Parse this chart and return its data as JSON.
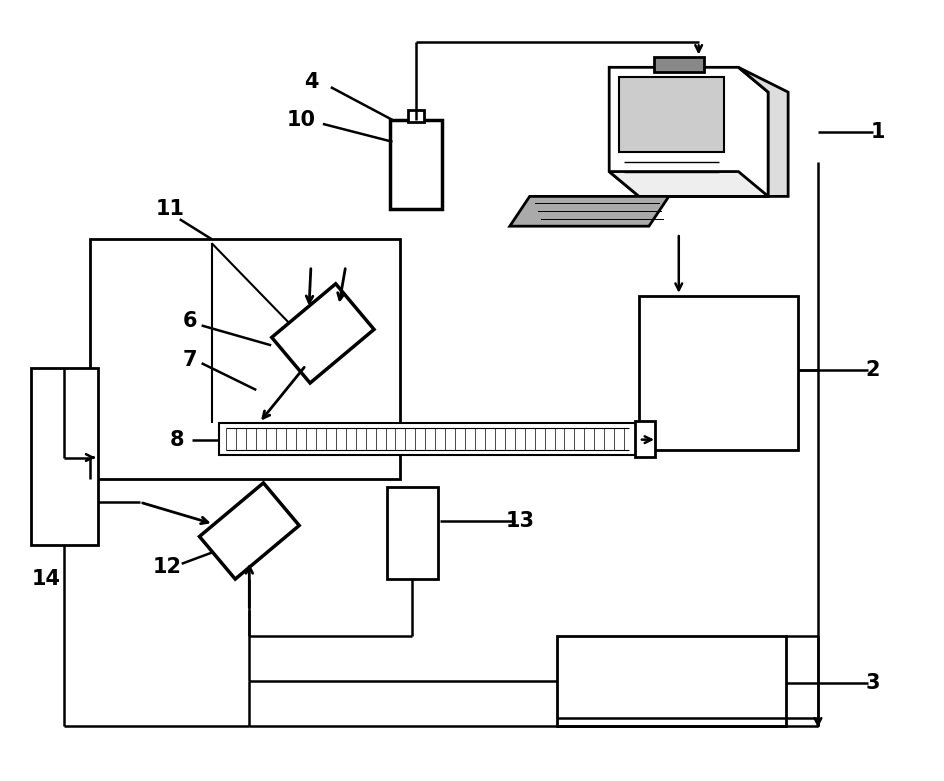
{
  "bg": "#ffffff",
  "lc": "#000000",
  "lw": 1.8,
  "fw": 9.44,
  "fh": 7.81,
  "dpi": 100
}
